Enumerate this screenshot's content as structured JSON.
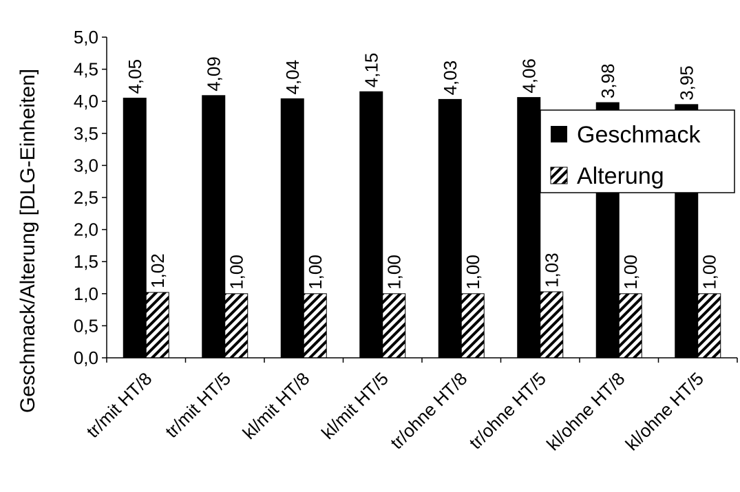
{
  "chart_data": {
    "type": "bar",
    "ylabel": "Geschmack/Alterung [DLG-Einheiten]",
    "xlabel": "",
    "ylim": [
      0,
      5
    ],
    "ytick_step": 0.5,
    "ytick_labels": [
      "0,0",
      "0,5",
      "1,0",
      "1,5",
      "2,0",
      "2,5",
      "3,0",
      "3,5",
      "4,0",
      "4,5",
      "5,0"
    ],
    "grid": false,
    "legend_position": "right",
    "categories": [
      "tr/mit HT/8",
      "tr/mit HT/5",
      "kl/mit HT/8",
      "kl/mit HT/5",
      "tr/ohne HT/8",
      "tr/ohne HT/5",
      "kl/ohne HT/8",
      "kl/ohne HT/5"
    ],
    "series": [
      {
        "name": "Geschmack",
        "values": [
          4.05,
          4.09,
          4.04,
          4.15,
          4.03,
          4.06,
          3.98,
          3.95
        ],
        "labels": [
          "4,05",
          "4,09",
          "4,04",
          "4,15",
          "4,03",
          "4,06",
          "3,98",
          "3,95"
        ],
        "fill": "solid",
        "color": "#000000"
      },
      {
        "name": "Alterung",
        "values": [
          1.02,
          1.0,
          1.0,
          1.0,
          1.0,
          1.03,
          1.0,
          1.0
        ],
        "labels": [
          "1,02",
          "1,00",
          "1,00",
          "1,00",
          "1,00",
          "1,03",
          "1,00",
          "1,00"
        ],
        "fill": "diagonal-hatch",
        "color": "#000000"
      }
    ]
  }
}
